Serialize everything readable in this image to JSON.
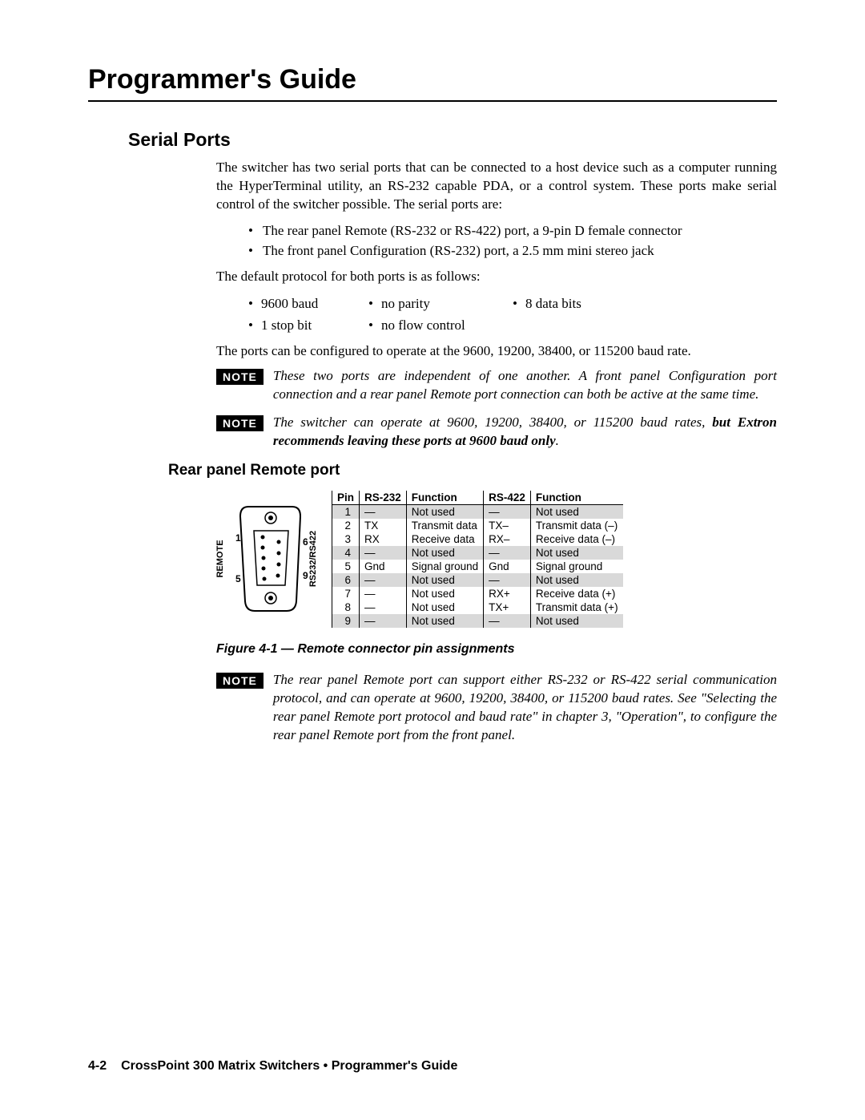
{
  "page_title": "Programmer's Guide",
  "sections": {
    "serial_ports": {
      "title": "Serial Ports",
      "intro": "The switcher has two serial ports that can be connected to a host device such as a computer running the HyperTerminal utility, an RS-232 capable PDA, or a control system.  These ports make serial control of the switcher possible.  The serial ports are:",
      "port_bullets": [
        "The rear panel Remote (RS-232 or RS-422) port, a 9-pin D female connector",
        "The front panel Configuration (RS-232) port, a 2.5 mm mini stereo jack"
      ],
      "protocol_intro": "The default protocol for both ports is as follows:",
      "protocol_row1": {
        "c1": "9600 baud",
        "c2": "no parity",
        "c3": "8 data bits"
      },
      "protocol_row2": {
        "c1": "1 stop bit",
        "c2": "no flow control"
      },
      "rates_text": "The ports can be configured to operate at the 9600, 19200, 38400, or 115200 baud rate.",
      "note1": "These two ports are independent of one another.  A front panel Configuration port connection and a rear panel Remote port connection can both be active at the same time.",
      "note2_a": "The switcher can operate at 9600, 19200, 38400, or 115200 baud rates, ",
      "note2_b": "but Extron recommends leaving these ports at 9600 baud only",
      "note2_c": "."
    },
    "rear_panel": {
      "title": "Rear panel Remote port",
      "connector": {
        "left_label": "REMOTE",
        "right_label": "RS232/RS422",
        "pin_nums": {
          "tl": "1",
          "bl": "5",
          "tr": "6",
          "br": "9"
        }
      },
      "table": {
        "headers": {
          "pin": "Pin",
          "rs232": "RS-232",
          "func1": "Function",
          "rs422": "RS-422",
          "func2": "Function"
        },
        "rows": [
          {
            "pin": "1",
            "rs232": "—",
            "f1": "Not used",
            "rs422": "—",
            "f2": "Not used",
            "shaded": true
          },
          {
            "pin": "2",
            "rs232": "TX",
            "f1": "Transmit data",
            "rs422": "TX–",
            "f2": "Transmit data (–)",
            "shaded": false
          },
          {
            "pin": "3",
            "rs232": "RX",
            "f1": "Receive data",
            "rs422": "RX–",
            "f2": "Receive data (–)",
            "shaded": false
          },
          {
            "pin": "4",
            "rs232": "—",
            "f1": "Not used",
            "rs422": "—",
            "f2": "Not used",
            "shaded": true
          },
          {
            "pin": "5",
            "rs232": "Gnd",
            "f1": "Signal ground",
            "rs422": "Gnd",
            "f2": "Signal ground",
            "shaded": false
          },
          {
            "pin": "6",
            "rs232": "—",
            "f1": "Not used",
            "rs422": "—",
            "f2": "Not used",
            "shaded": true
          },
          {
            "pin": "7",
            "rs232": "—",
            "f1": "Not used",
            "rs422": "RX+",
            "f2": "Receive data (+)",
            "shaded": false
          },
          {
            "pin": "8",
            "rs232": "—",
            "f1": "Not used",
            "rs422": "TX+",
            "f2": "Transmit data (+)",
            "shaded": false
          },
          {
            "pin": "9",
            "rs232": "—",
            "f1": "Not used",
            "rs422": "—",
            "f2": "Not used",
            "shaded": true
          }
        ]
      },
      "caption": "Figure 4-1 — Remote connector pin assignments",
      "note3": "The rear panel Remote port can support either RS-232 or RS-422 serial communication protocol, and can operate at 9600, 19200, 38400, or 115200 baud rates.  See \"Selecting the rear panel Remote port protocol and baud rate\" in chapter 3, \"Operation\", to configure the rear panel Remote port from the front panel."
    }
  },
  "footer": {
    "page": "4-2",
    "text": "CrossPoint 300 Matrix Switchers • Programmer's Guide"
  },
  "note_label": "NOTE",
  "colors": {
    "shaded_row": "#d9d9d9",
    "text": "#000000",
    "bg": "#ffffff"
  }
}
